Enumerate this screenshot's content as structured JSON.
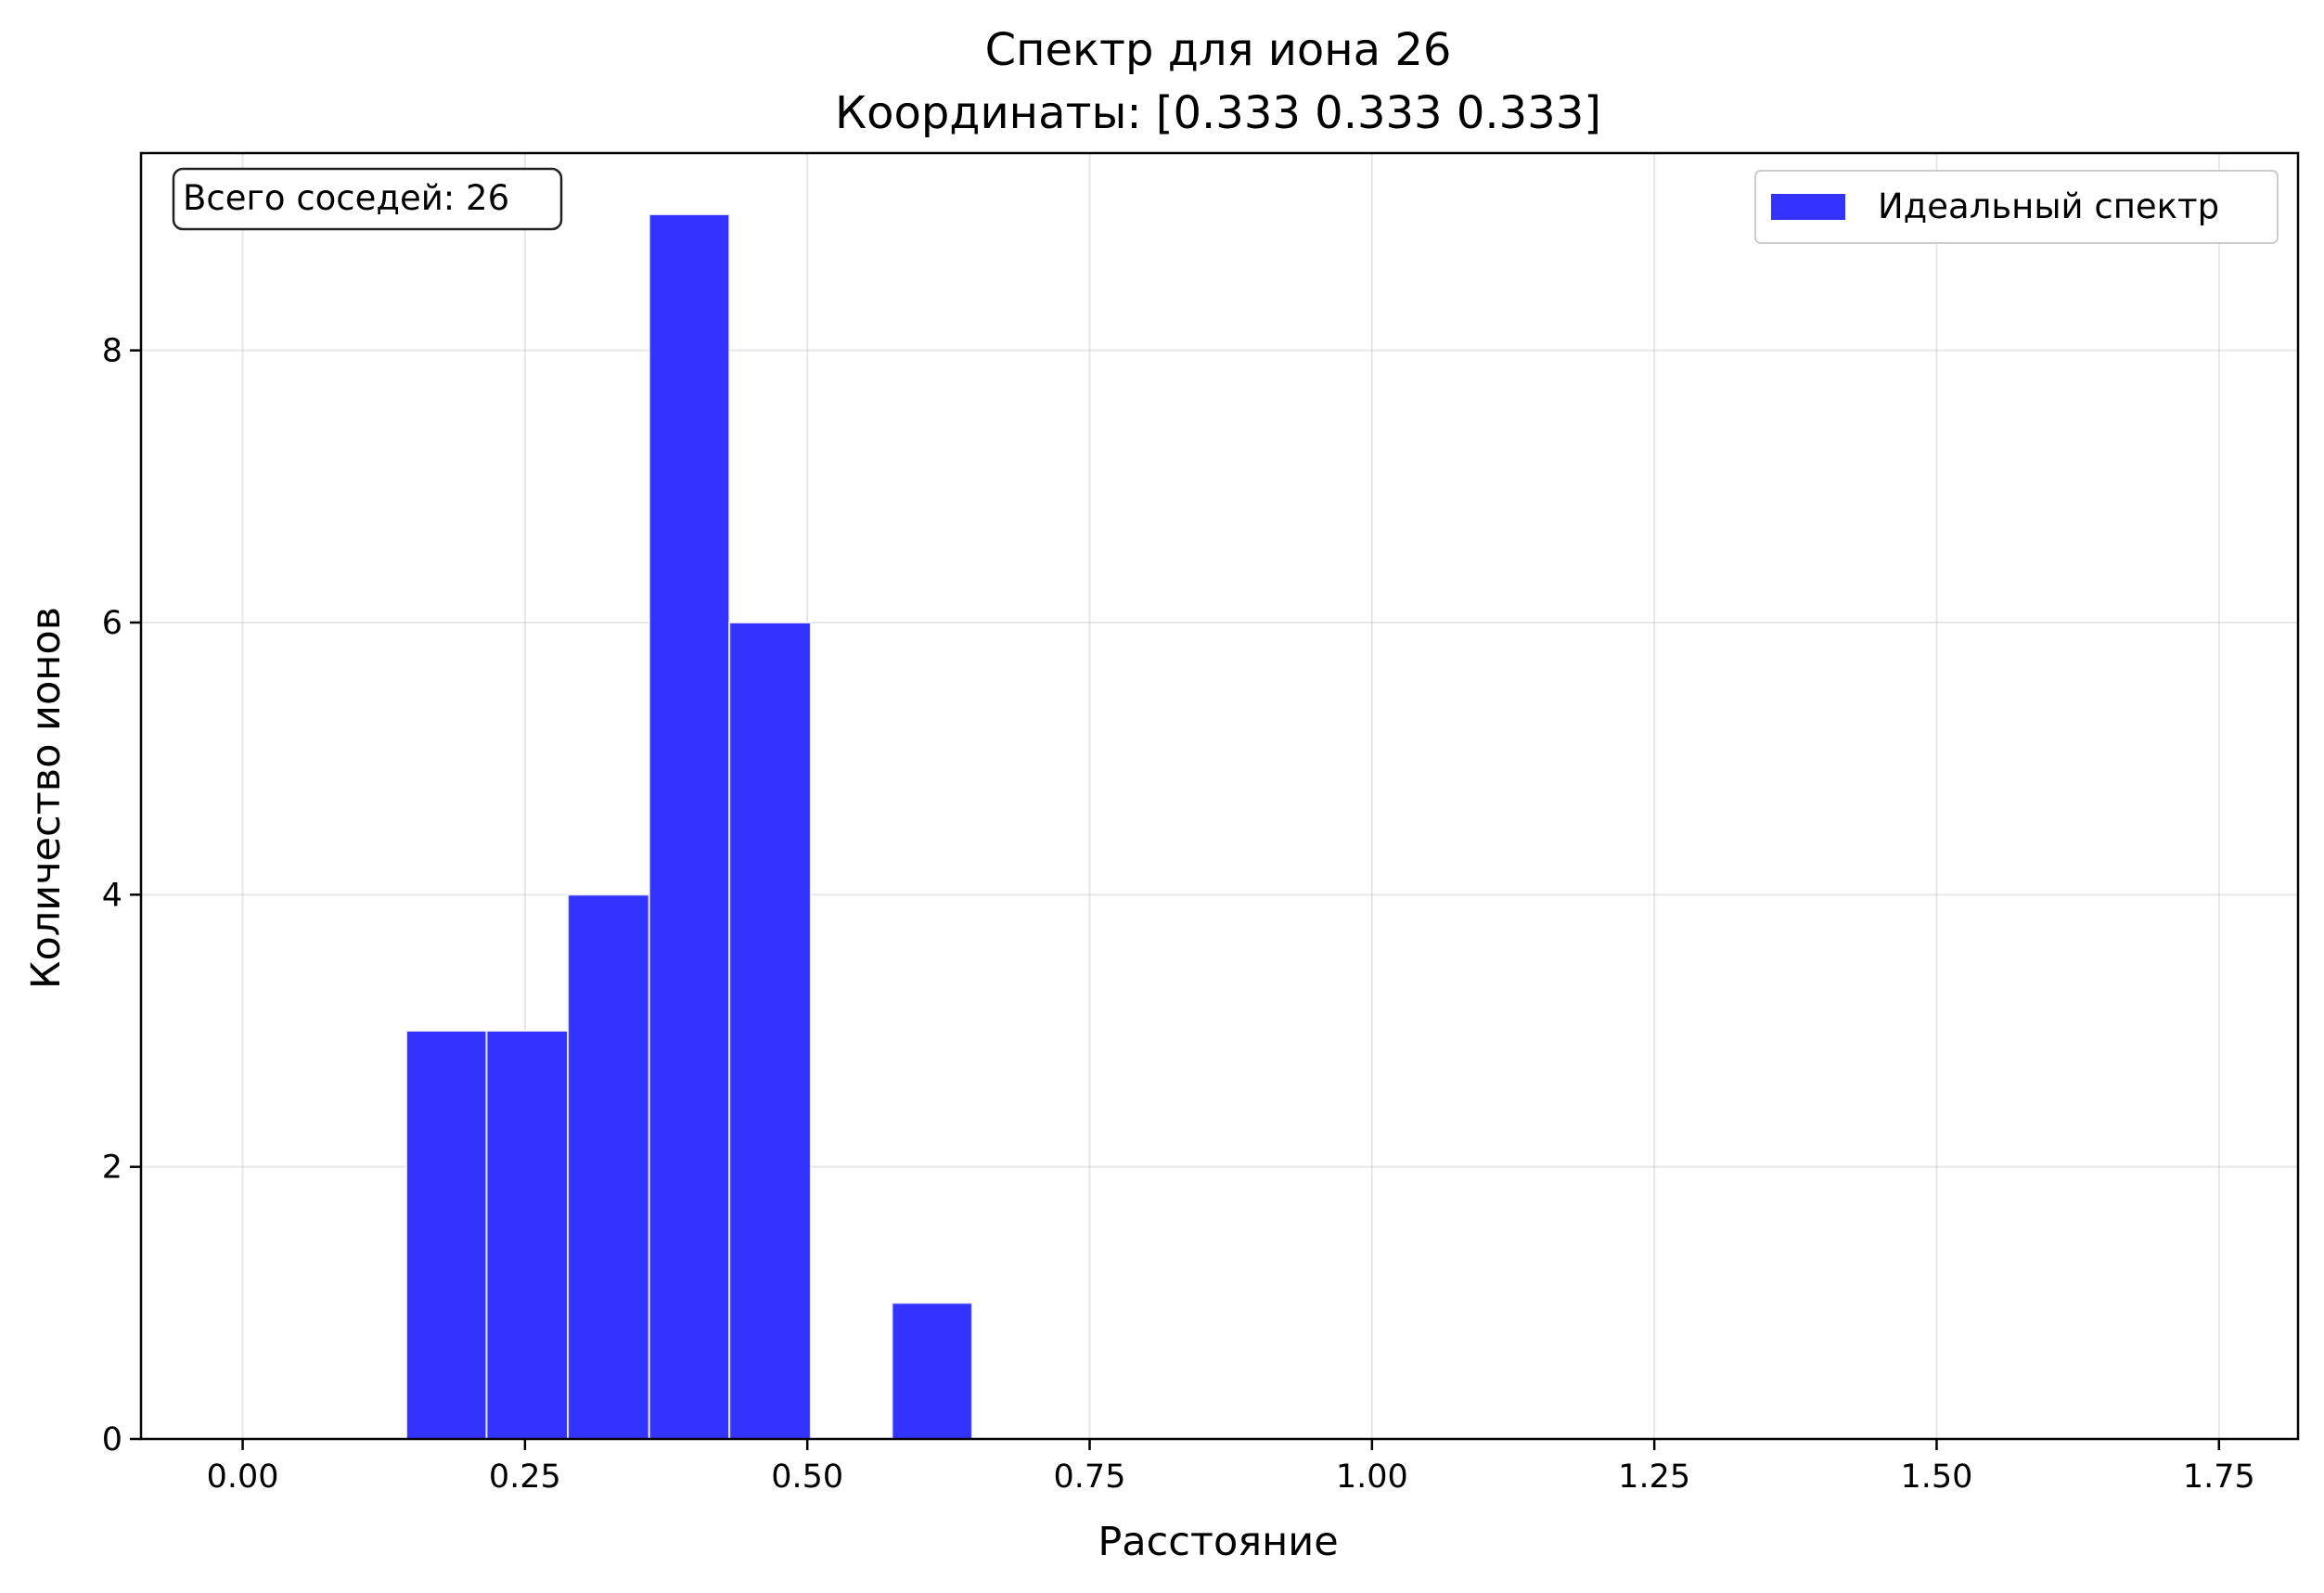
{
  "chart_data": {
    "type": "bar",
    "title_lines": [
      "Спектр для иона 26",
      "Координаты: [0.333 0.333 0.333]"
    ],
    "xlabel": "Расстояние",
    "ylabel": "Количество ионов",
    "xlim": [
      -0.09,
      1.82
    ],
    "ylim": [
      0,
      9.45
    ],
    "xticks": [
      0.0,
      0.25,
      0.5,
      0.75,
      1.0,
      1.25,
      1.5,
      1.75
    ],
    "xtick_labels": [
      "0.00",
      "0.25",
      "0.50",
      "0.75",
      "1.00",
      "1.25",
      "1.50",
      "1.75"
    ],
    "yticks": [
      0,
      2,
      4,
      6,
      8
    ],
    "ytick_labels": [
      "0",
      "2",
      "4",
      "6",
      "8"
    ],
    "grid": true,
    "bars": [
      {
        "x0": 0.145,
        "x1": 0.216,
        "value": 3
      },
      {
        "x0": 0.216,
        "x1": 0.288,
        "value": 3
      },
      {
        "x0": 0.288,
        "x1": 0.36,
        "value": 4
      },
      {
        "x0": 0.36,
        "x1": 0.431,
        "value": 9
      },
      {
        "x0": 0.431,
        "x1": 0.503,
        "value": 6
      },
      {
        "x0": 0.575,
        "x1": 0.646,
        "value": 1
      }
    ],
    "bar_color": "#3333ff",
    "series": [
      {
        "name": "Идеальный спектр",
        "color": "#3333ff"
      }
    ],
    "legend_position": "top-right",
    "annotation": {
      "text": "Всего соседей: 26",
      "position": "top-left"
    }
  }
}
